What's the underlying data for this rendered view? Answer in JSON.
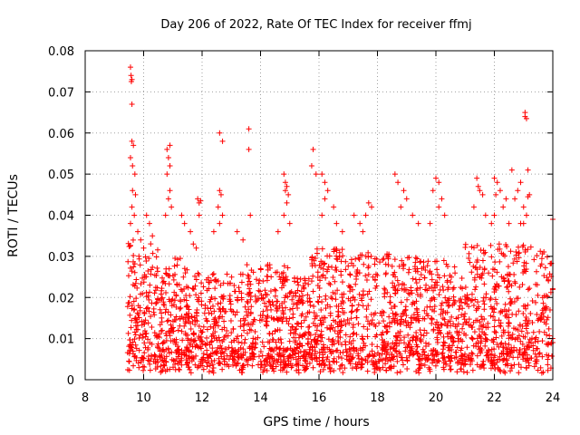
{
  "chart_data": {
    "type": "scatter",
    "title": "Day 206 of 2022, Rate Of TEC Index for receiver ffmj",
    "xlabel": "GPS time / hours",
    "ylabel": "ROTI / TECUs",
    "xlim": [
      8,
      24
    ],
    "ylim": [
      0,
      0.08
    ],
    "xticks": [
      8,
      10,
      12,
      14,
      16,
      18,
      20,
      22,
      24
    ],
    "xtick_labels": [
      "8",
      "10",
      "12",
      "14",
      "16",
      "18",
      "20",
      "22",
      "24"
    ],
    "yticks": [
      0,
      0.01,
      0.02,
      0.03,
      0.04,
      0.05,
      0.06,
      0.07,
      0.08
    ],
    "ytick_labels": [
      "0",
      "0.01",
      "0.02",
      "0.03",
      "0.04",
      "0.05",
      "0.06",
      "0.07",
      "0.08"
    ],
    "grid": true,
    "marker": "+",
    "color": "#ff0000",
    "series": [
      {
        "name": "ROTI",
        "points": [
          [
            9.55,
            0.076
          ],
          [
            9.57,
            0.074
          ],
          [
            9.6,
            0.073
          ],
          [
            9.58,
            0.0725
          ],
          [
            9.6,
            0.067
          ],
          [
            9.6,
            0.058
          ],
          [
            9.65,
            0.057
          ],
          [
            9.55,
            0.054
          ],
          [
            9.62,
            0.052
          ],
          [
            9.7,
            0.05
          ],
          [
            9.62,
            0.046
          ],
          [
            9.72,
            0.045
          ],
          [
            9.6,
            0.042
          ],
          [
            9.68,
            0.04
          ],
          [
            9.55,
            0.038
          ],
          [
            9.8,
            0.036
          ],
          [
            9.9,
            0.034
          ],
          [
            10.0,
            0.032
          ],
          [
            10.1,
            0.04
          ],
          [
            10.2,
            0.038
          ],
          [
            10.3,
            0.035
          ],
          [
            10.8,
            0.056
          ],
          [
            10.9,
            0.057
          ],
          [
            10.85,
            0.054
          ],
          [
            10.9,
            0.052
          ],
          [
            10.8,
            0.05
          ],
          [
            10.9,
            0.046
          ],
          [
            10.85,
            0.044
          ],
          [
            10.75,
            0.04
          ],
          [
            10.95,
            0.042
          ],
          [
            11.3,
            0.04
          ],
          [
            11.4,
            0.038
          ],
          [
            11.6,
            0.036
          ],
          [
            11.7,
            0.033
          ],
          [
            11.8,
            0.032
          ],
          [
            11.85,
            0.044
          ],
          [
            11.9,
            0.043
          ],
          [
            11.95,
            0.0435
          ],
          [
            11.9,
            0.04
          ],
          [
            12.6,
            0.06
          ],
          [
            12.7,
            0.058
          ],
          [
            12.6,
            0.046
          ],
          [
            12.65,
            0.045
          ],
          [
            12.55,
            0.042
          ],
          [
            12.7,
            0.04
          ],
          [
            12.6,
            0.038
          ],
          [
            12.4,
            0.036
          ],
          [
            13.6,
            0.061
          ],
          [
            13.6,
            0.056
          ],
          [
            13.65,
            0.04
          ],
          [
            13.2,
            0.036
          ],
          [
            13.4,
            0.034
          ],
          [
            14.8,
            0.05
          ],
          [
            14.85,
            0.048
          ],
          [
            14.9,
            0.047
          ],
          [
            14.85,
            0.046
          ],
          [
            14.95,
            0.045
          ],
          [
            14.9,
            0.043
          ],
          [
            14.8,
            0.04
          ],
          [
            15.0,
            0.038
          ],
          [
            14.6,
            0.036
          ],
          [
            15.8,
            0.056
          ],
          [
            15.75,
            0.052
          ],
          [
            15.9,
            0.05
          ],
          [
            16.1,
            0.05
          ],
          [
            16.2,
            0.048
          ],
          [
            16.3,
            0.046
          ],
          [
            16.2,
            0.044
          ],
          [
            16.5,
            0.042
          ],
          [
            16.1,
            0.04
          ],
          [
            16.6,
            0.038
          ],
          [
            16.8,
            0.036
          ],
          [
            17.2,
            0.04
          ],
          [
            17.4,
            0.038
          ],
          [
            17.5,
            0.036
          ],
          [
            17.7,
            0.043
          ],
          [
            17.8,
            0.042
          ],
          [
            17.6,
            0.04
          ],
          [
            18.6,
            0.05
          ],
          [
            18.7,
            0.048
          ],
          [
            18.9,
            0.046
          ],
          [
            19.0,
            0.044
          ],
          [
            18.8,
            0.042
          ],
          [
            19.2,
            0.04
          ],
          [
            19.4,
            0.038
          ],
          [
            20.0,
            0.049
          ],
          [
            20.1,
            0.048
          ],
          [
            19.9,
            0.046
          ],
          [
            20.2,
            0.044
          ],
          [
            20.1,
            0.042
          ],
          [
            20.3,
            0.04
          ],
          [
            19.8,
            0.038
          ],
          [
            21.4,
            0.049
          ],
          [
            21.45,
            0.047
          ],
          [
            21.5,
            0.046
          ],
          [
            21.6,
            0.045
          ],
          [
            21.3,
            0.042
          ],
          [
            21.7,
            0.04
          ],
          [
            21.9,
            0.038
          ],
          [
            22.0,
            0.049
          ],
          [
            22.1,
            0.048
          ],
          [
            22.2,
            0.046
          ],
          [
            22.05,
            0.045
          ],
          [
            22.4,
            0.044
          ],
          [
            22.3,
            0.042
          ],
          [
            22.0,
            0.04
          ],
          [
            22.5,
            0.038
          ],
          [
            22.6,
            0.051
          ],
          [
            22.9,
            0.048
          ],
          [
            22.8,
            0.046
          ],
          [
            22.7,
            0.044
          ],
          [
            23.0,
            0.042
          ],
          [
            23.1,
            0.04
          ],
          [
            22.9,
            0.038
          ],
          [
            23.05,
            0.065
          ],
          [
            23.05,
            0.064
          ],
          [
            23.1,
            0.0635
          ],
          [
            23.15,
            0.051
          ],
          [
            23.2,
            0.045
          ],
          [
            23.15,
            0.0445
          ],
          [
            23.1,
            0.04
          ],
          [
            23.0,
            0.038
          ],
          [
            24.0,
            0.039
          ]
        ]
      }
    ]
  }
}
